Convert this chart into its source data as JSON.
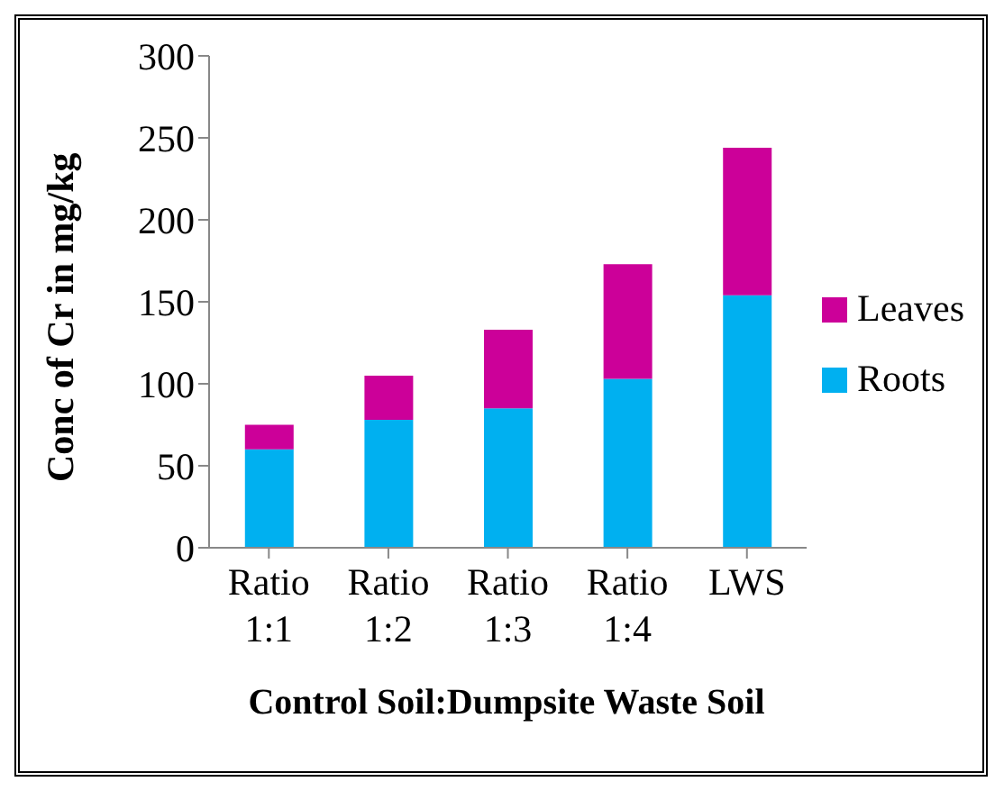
{
  "chart_data": {
    "type": "bar",
    "stacked": true,
    "xlabel": "Control Soil:Dumpsite Waste Soil",
    "ylabel": "Conc of Cr in mg/kg",
    "categories": [
      "Ratio 1:1",
      "Ratio 1:2",
      "Ratio 1:3",
      "Ratio 1:4",
      "LWS"
    ],
    "series": [
      {
        "name": "Roots",
        "color": "#00b0f0",
        "values": [
          60,
          78,
          85,
          103,
          154
        ]
      },
      {
        "name": "Leaves",
        "color": "#cc0099",
        "values": [
          15,
          27,
          48,
          70,
          90
        ]
      }
    ],
    "ylim": [
      0,
      300
    ],
    "yticks": [
      0,
      50,
      100,
      150,
      200,
      250,
      300
    ],
    "grid": false,
    "legend": "right"
  }
}
